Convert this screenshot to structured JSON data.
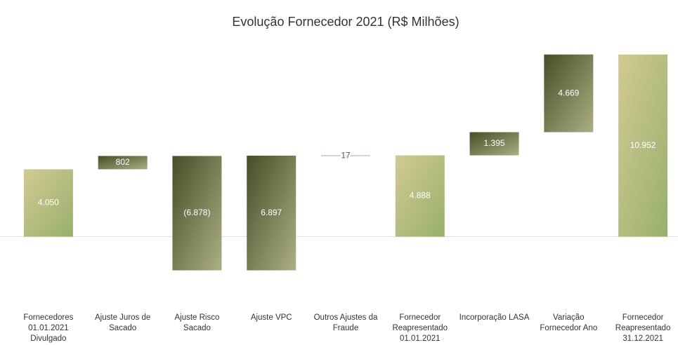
{
  "chart_data": {
    "type": "waterfall",
    "title": "Evolução Fornecedor 2021 (R$ Milhões)",
    "categories": [
      "Fornecedores 01.01.2021 Divulgado",
      "Ajuste Juros de Sacado",
      "Ajuste Risco Sacado",
      "Ajuste VPC",
      "Outros Ajustes da Fraude",
      "Fornecedor Reapresentado 01.01.2021",
      "Incorporação LASA",
      "Variação Fornecedor Ano",
      "Fornecedor Reapresentado 31.12.2021"
    ],
    "values": [
      4050,
      802,
      -6878,
      6897,
      17,
      4888,
      1395,
      4669,
      10952
    ],
    "value_labels": [
      "4.050",
      "802",
      "(6.878)",
      "6.897",
      "17",
      "4.888",
      "1.395",
      "4.669",
      "10.952"
    ],
    "total_indices": [
      0,
      5,
      8
    ],
    "colors": {
      "total": [
        "#d2ca93",
        "#98b06c"
      ],
      "delta": [
        "#454e27",
        "#acaf82"
      ]
    },
    "ylim": [
      -3900,
      11700
    ]
  }
}
